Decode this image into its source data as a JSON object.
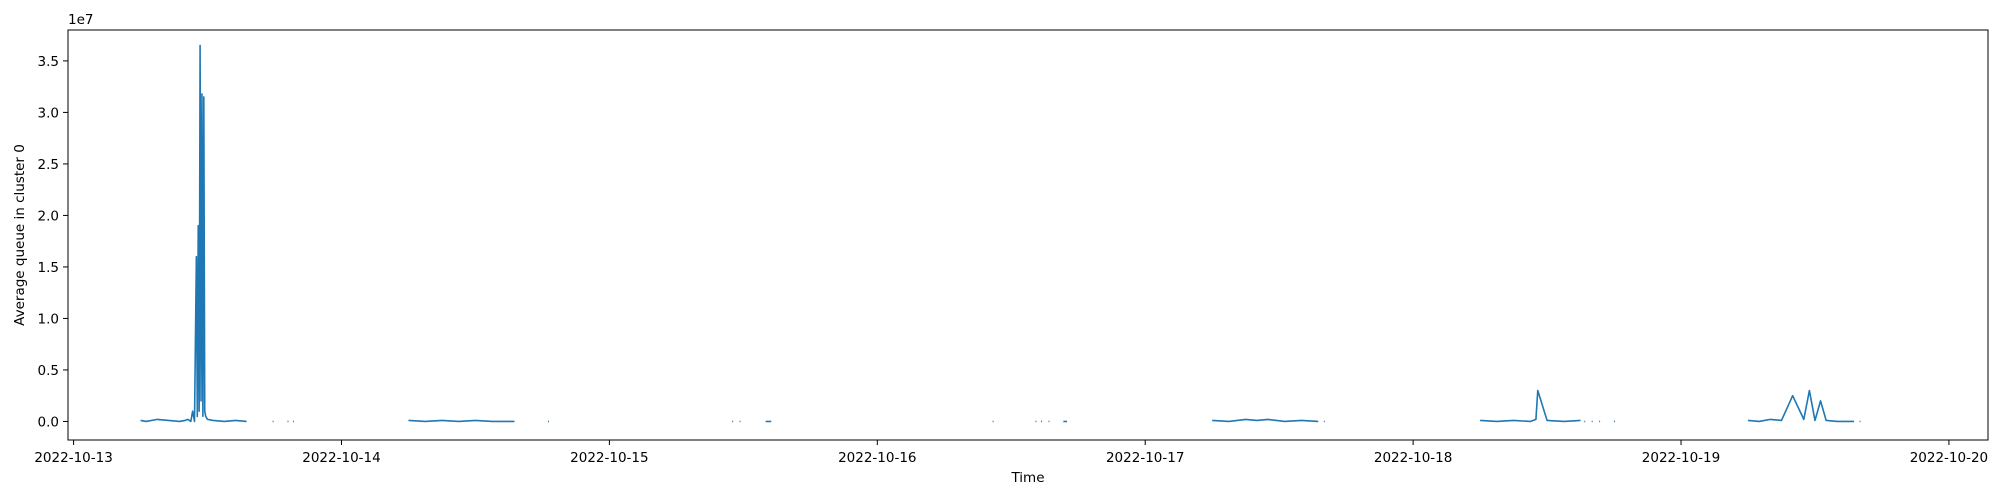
{
  "chart_data": {
    "type": "line",
    "title": "",
    "xlabel": "Time",
    "ylabel": "Average queue in cluster 0",
    "y_offset_label": "1e7",
    "y_multiplier": 10000000,
    "xlim": [
      "2022-10-12 23:30",
      "2022-10-20 03:30"
    ],
    "ylim": [
      -0.18,
      3.8
    ],
    "x_ticks": [
      "2022-10-13",
      "2022-10-14",
      "2022-10-15",
      "2022-10-16",
      "2022-10-17",
      "2022-10-18",
      "2022-10-19",
      "2022-10-20"
    ],
    "y_ticks": [
      0.0,
      0.5,
      1.0,
      1.5,
      2.0,
      2.5,
      3.0,
      3.5
    ],
    "y_tick_labels": [
      "0.0",
      "0.5",
      "1.0",
      "1.5",
      "2.0",
      "2.5",
      "3.0",
      "3.5"
    ],
    "grid": false,
    "legend": "none",
    "series_color": "#1f77b4",
    "series": [
      {
        "segments": [
          {
            "x": [
              "2022-10-13 06:00",
              "2022-10-13 06:30",
              "2022-10-13 07:30",
              "2022-10-13 08:30",
              "2022-10-13 09:30",
              "2022-10-13 10:00",
              "2022-10-13 10:15",
              "2022-10-13 10:30",
              "2022-10-13 10:40",
              "2022-10-13 10:50",
              "2022-10-13 11:00",
              "2022-10-13 11:05",
              "2022-10-13 11:10",
              "2022-10-13 11:15",
              "2022-10-13 11:20",
              "2022-10-13 11:25",
              "2022-10-13 11:30",
              "2022-10-13 11:35",
              "2022-10-13 11:40",
              "2022-10-13 11:45",
              "2022-10-13 11:50",
              "2022-10-13 12:00",
              "2022-10-13 12:30",
              "2022-10-13 13:30",
              "2022-10-13 14:30",
              "2022-10-13 15:30"
            ],
            "y": [
              0.01,
              0.0,
              0.02,
              0.01,
              0.0,
              0.01,
              0.02,
              0.0,
              0.1,
              0.0,
              1.6,
              0.05,
              1.9,
              0.1,
              3.65,
              0.2,
              3.18,
              0.05,
              3.15,
              0.1,
              0.05,
              0.02,
              0.01,
              0.0,
              0.01,
              0.0
            ]
          },
          {
            "x": [
              "2022-10-13 17:50",
              "2022-10-13 17:55"
            ],
            "y": [
              0.0,
              0.0
            ]
          },
          {
            "x": [
              "2022-10-13 19:10",
              "2022-10-13 19:15"
            ],
            "y": [
              0.0,
              0.0
            ]
          },
          {
            "x": [
              "2022-10-13 19:40",
              "2022-10-13 19:45"
            ],
            "y": [
              0.0,
              0.0
            ]
          },
          {
            "x": [
              "2022-10-14 06:00",
              "2022-10-14 07:30",
              "2022-10-14 09:00",
              "2022-10-14 10:30",
              "2022-10-14 12:00",
              "2022-10-14 13:30",
              "2022-10-14 15:30"
            ],
            "y": [
              0.01,
              0.0,
              0.01,
              0.0,
              0.01,
              0.0,
              0.0
            ]
          },
          {
            "x": [
              "2022-10-14 18:30",
              "2022-10-14 18:35"
            ],
            "y": [
              0.0,
              0.0
            ]
          },
          {
            "x": [
              "2022-10-15 11:00",
              "2022-10-15 11:05"
            ],
            "y": [
              0.0,
              0.0
            ]
          },
          {
            "x": [
              "2022-10-15 11:40",
              "2022-10-15 11:45"
            ],
            "y": [
              0.0,
              0.0
            ]
          },
          {
            "x": [
              "2022-10-15 14:00",
              "2022-10-15 14:30"
            ],
            "y": [
              0.0,
              0.0
            ]
          },
          {
            "x": [
              "2022-10-16 10:20",
              "2022-10-16 10:25"
            ],
            "y": [
              0.0,
              0.0
            ]
          },
          {
            "x": [
              "2022-10-16 14:10",
              "2022-10-16 14:15"
            ],
            "y": [
              0.0,
              0.0
            ]
          },
          {
            "x": [
              "2022-10-16 14:40",
              "2022-10-16 14:45"
            ],
            "y": [
              0.0,
              0.0
            ]
          },
          {
            "x": [
              "2022-10-16 15:20",
              "2022-10-16 15:25"
            ],
            "y": [
              0.0,
              0.0
            ]
          },
          {
            "x": [
              "2022-10-16 16:40",
              "2022-10-16 17:00"
            ],
            "y": [
              0.0,
              0.0
            ]
          },
          {
            "x": [
              "2022-10-17 06:00",
              "2022-10-17 07:30",
              "2022-10-17 09:00",
              "2022-10-17 10:00",
              "2022-10-17 11:00",
              "2022-10-17 12:30",
              "2022-10-17 14:00",
              "2022-10-17 15:30"
            ],
            "y": [
              0.01,
              0.0,
              0.02,
              0.01,
              0.02,
              0.0,
              0.01,
              0.0
            ]
          },
          {
            "x": [
              "2022-10-17 16:00",
              "2022-10-17 16:05"
            ],
            "y": [
              0.0,
              0.0
            ]
          },
          {
            "x": [
              "2022-10-18 06:00",
              "2022-10-18 07:30",
              "2022-10-18 09:00",
              "2022-10-18 10:30",
              "2022-10-18 11:00",
              "2022-10-18 11:10",
              "2022-10-18 12:00",
              "2022-10-18 13:30",
              "2022-10-18 15:00"
            ],
            "y": [
              0.01,
              0.0,
              0.01,
              0.0,
              0.02,
              0.3,
              0.01,
              0.0,
              0.01
            ]
          },
          {
            "x": [
              "2022-10-18 15:20",
              "2022-10-18 15:25"
            ],
            "y": [
              0.0,
              0.0
            ]
          },
          {
            "x": [
              "2022-10-18 16:00",
              "2022-10-18 16:05"
            ],
            "y": [
              0.0,
              0.0
            ]
          },
          {
            "x": [
              "2022-10-18 16:40",
              "2022-10-18 16:45"
            ],
            "y": [
              0.0,
              0.0
            ]
          },
          {
            "x": [
              "2022-10-18 18:00",
              "2022-10-18 18:05"
            ],
            "y": [
              0.0,
              0.0
            ]
          },
          {
            "x": [
              "2022-10-19 06:00",
              "2022-10-19 07:00",
              "2022-10-19 08:00",
              "2022-10-19 09:00",
              "2022-10-19 10:00",
              "2022-10-19 11:00",
              "2022-10-19 11:30",
              "2022-10-19 12:00",
              "2022-10-19 12:30",
              "2022-10-19 13:00",
              "2022-10-19 14:00",
              "2022-10-19 15:30"
            ],
            "y": [
              0.01,
              0.0,
              0.02,
              0.01,
              0.25,
              0.02,
              0.3,
              0.01,
              0.2,
              0.01,
              0.0,
              0.0
            ]
          },
          {
            "x": [
              "2022-10-19 16:00",
              "2022-10-19 16:05"
            ],
            "y": [
              0.0,
              0.0
            ]
          }
        ]
      }
    ]
  }
}
